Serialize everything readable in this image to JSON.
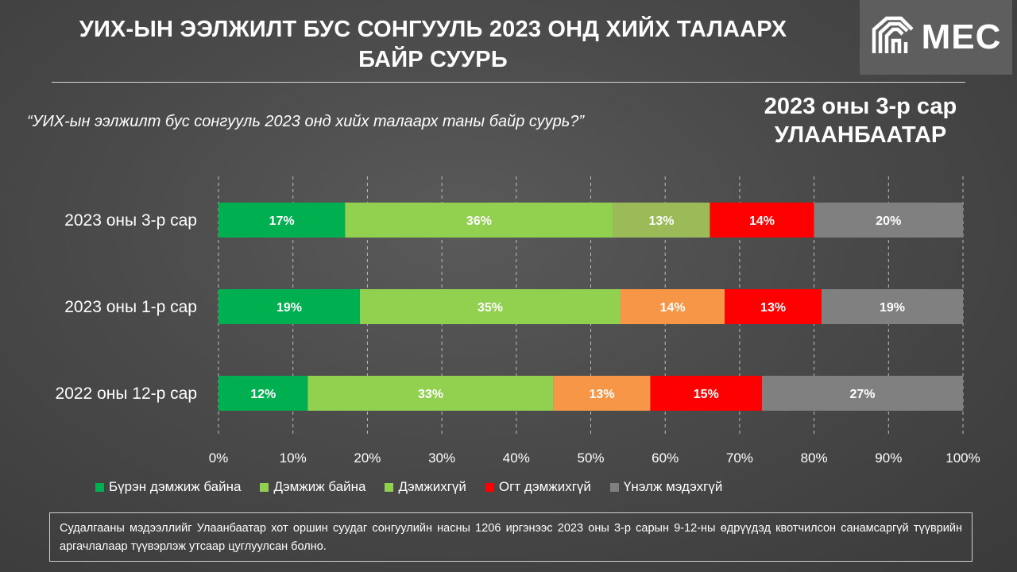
{
  "header": {
    "title_line1": "УИХ-ЫН ЭЭЛЖИЛТ БУС СОНГУУЛЬ 2023 ОНД ХИЙХ ТАЛААРХ",
    "title_line2": "БАЙР СУУРЬ",
    "logo_text": "MEC"
  },
  "question": "“УИХ-ын ээлжилт бус сонгууль 2023 онд хийх талаарх таны байр суурь?”",
  "period": {
    "line1": "2023 оны 3-р сар",
    "line2": "УЛААНБААТАР"
  },
  "footnote": "Судалгааны мэдээллийг Улаанбаатар хот оршин суудаг сонгуулийн насны 1206 иргэнээс 2023 оны 3-р сарын 9-12-ны өдрүүдэд квотчилсон санамсаргүй түүврийн аргачлалаар түүвэрлэж утсаар цуглуулсан болно.",
  "chart_data": {
    "type": "bar",
    "orientation": "horizontal",
    "stacked": true,
    "categories": [
      "2023 оны 3-р сар",
      "2023 оны 1-р сар",
      "2022 оны 12-р сар"
    ],
    "series": [
      {
        "name": "Бүрэн дэмжиж байна",
        "values": [
          17,
          19,
          12
        ],
        "color": "#00b050"
      },
      {
        "name": "Дэмжиж байна",
        "values": [
          36,
          35,
          33
        ],
        "color": "#92d050"
      },
      {
        "name": "Дэмжихгүй",
        "values": [
          13,
          14,
          13
        ],
        "colors": [
          "#9bbb59",
          "#f79646",
          "#f79646"
        ]
      },
      {
        "name": "Огт дэмжихгүй",
        "values": [
          14,
          13,
          15
        ],
        "color": "#ff0000"
      },
      {
        "name": "Үнэлж мэдэхгүй",
        "values": [
          20,
          19,
          27
        ],
        "color": "#808080"
      }
    ],
    "x_ticks": [
      "0%",
      "10%",
      "20%",
      "30%",
      "40%",
      "50%",
      "60%",
      "70%",
      "80%",
      "90%",
      "100%"
    ],
    "xlim": [
      0,
      100
    ],
    "legend": [
      {
        "label": "Бүрэн дэмжиж байна",
        "color": "#00b050"
      },
      {
        "label": "Дэмжиж байна",
        "color": "#92d050"
      },
      {
        "label": "Дэмжихгүй",
        "color": "#92d050"
      },
      {
        "label": "Огт дэмжихгүй",
        "color": "#ff0000"
      },
      {
        "label": "Үнэлж мэдэхгүй",
        "color": "#808080"
      }
    ],
    "legend_position": "bottom",
    "grid": "vertical-dashed"
  }
}
